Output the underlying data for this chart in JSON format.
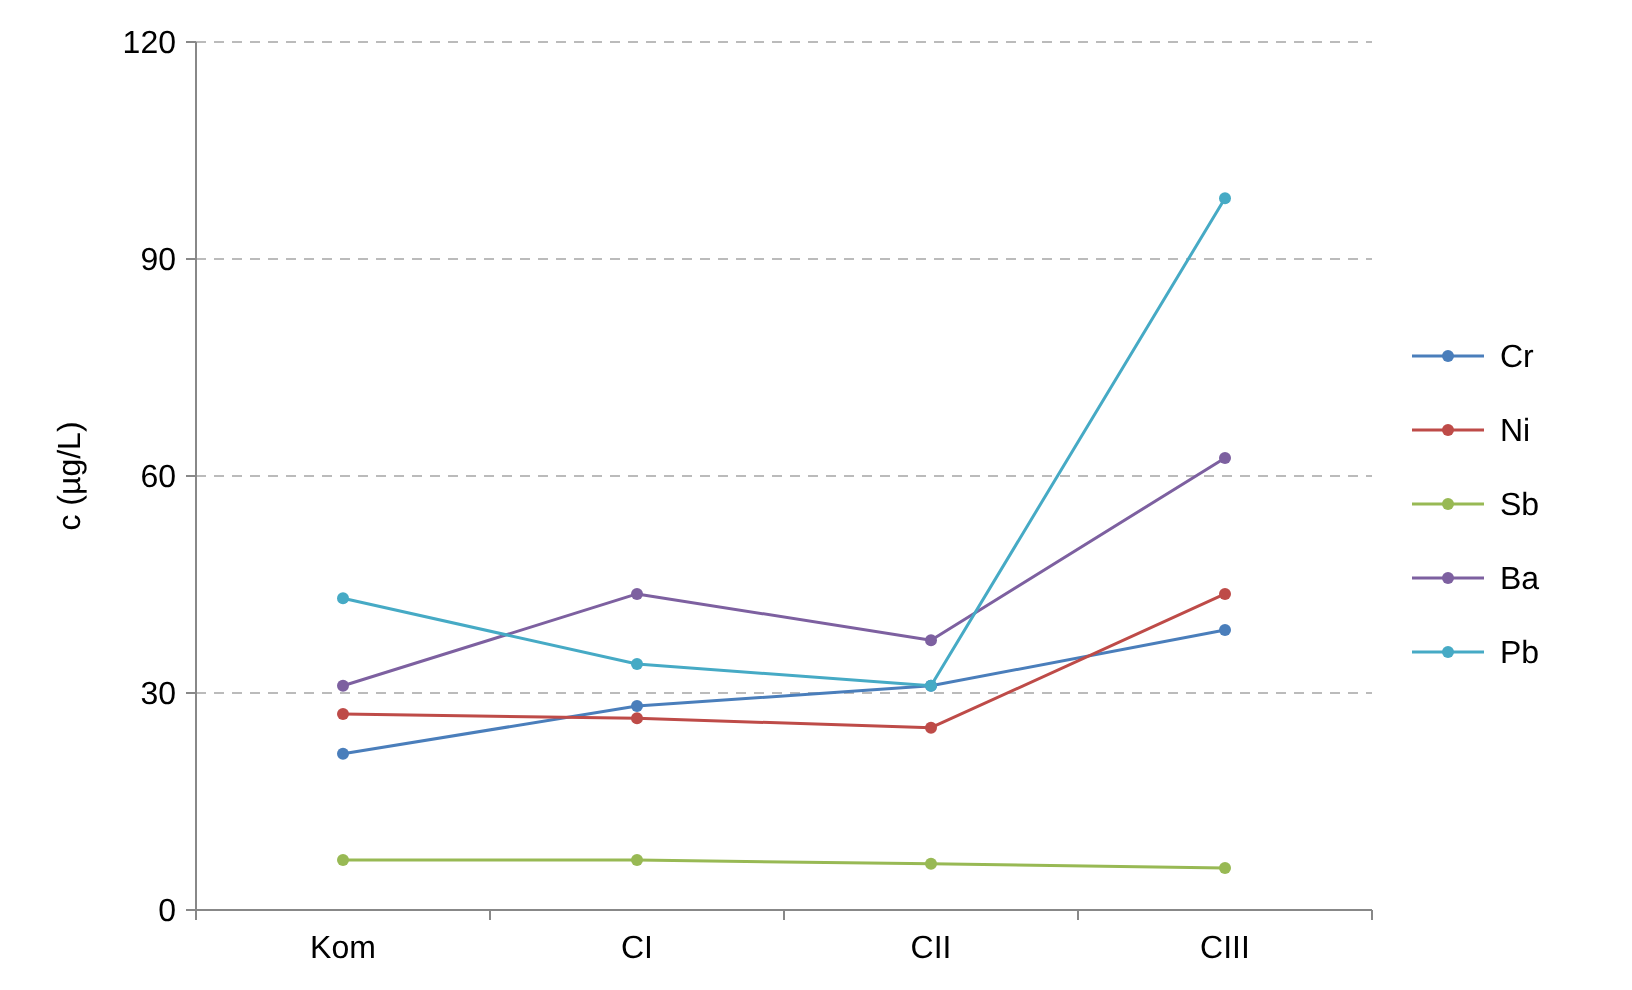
{
  "chart_data": {
    "type": "line",
    "ylabel": "c (µg/L)",
    "categories": [
      "Kom",
      "CI",
      "CII",
      "CIII"
    ],
    "series": [
      {
        "name": "Cr",
        "color": "#4a7ebb",
        "values": [
          21.6,
          28.2,
          31,
          38.7
        ]
      },
      {
        "name": "Ni",
        "color": "#be4b48",
        "values": [
          27.1,
          26.5,
          25.2,
          43.7
        ]
      },
      {
        "name": "Sb",
        "color": "#98b954",
        "values": [
          6.9,
          6.9,
          6.4,
          5.8
        ]
      },
      {
        "name": "Ba",
        "color": "#7d60a0",
        "values": [
          31,
          43.7,
          37.3,
          62.5
        ]
      },
      {
        "name": "Pb",
        "color": "#46aac5",
        "values": [
          43.1,
          34,
          31,
          98.4
        ]
      }
    ],
    "ylim": [
      0,
      120
    ],
    "yticks": [
      0,
      30,
      60,
      90,
      120
    ],
    "grid": "y",
    "legend": "right",
    "marker": "circle"
  }
}
